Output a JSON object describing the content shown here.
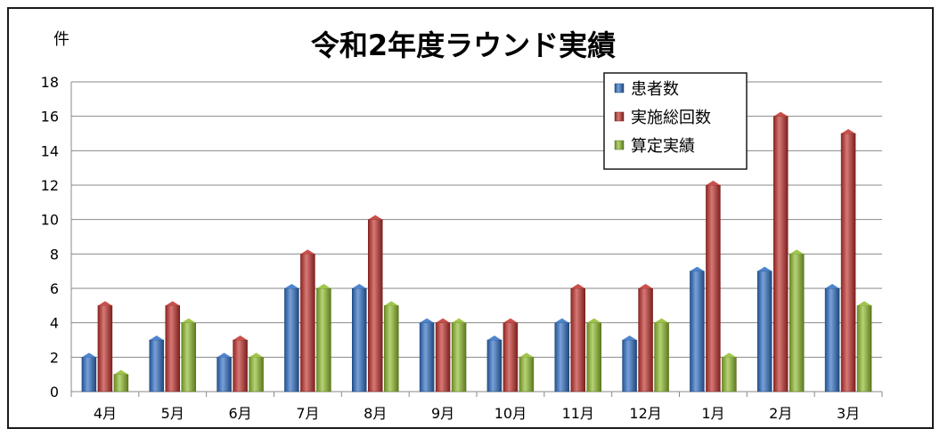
{
  "chart_data": {
    "type": "bar",
    "title": "令和2年度ラウンド実績",
    "ylabel": "件",
    "xlabel": "",
    "ylim": [
      0,
      18
    ],
    "yticks": [
      0,
      2,
      4,
      6,
      8,
      10,
      12,
      14,
      16,
      18
    ],
    "grid": true,
    "legend_position": "top-right",
    "categories": [
      "4月",
      "5月",
      "6月",
      "7月",
      "8月",
      "9月",
      "10月",
      "11月",
      "12月",
      "1月",
      "2月",
      "3月"
    ],
    "series": [
      {
        "name": "患者数",
        "color": "#2f6fc4",
        "values": [
          2,
          3,
          2,
          6,
          6,
          4,
          3,
          4,
          3,
          7,
          7,
          6
        ]
      },
      {
        "name": "実施総回数",
        "color": "#c0312c",
        "values": [
          5,
          5,
          3,
          8,
          10,
          4,
          4,
          6,
          6,
          12,
          16,
          15
        ]
      },
      {
        "name": "算定実績",
        "color": "#8fbc2c",
        "values": [
          1,
          4,
          2,
          6,
          5,
          4,
          2,
          4,
          4,
          2,
          8,
          5
        ]
      }
    ]
  }
}
